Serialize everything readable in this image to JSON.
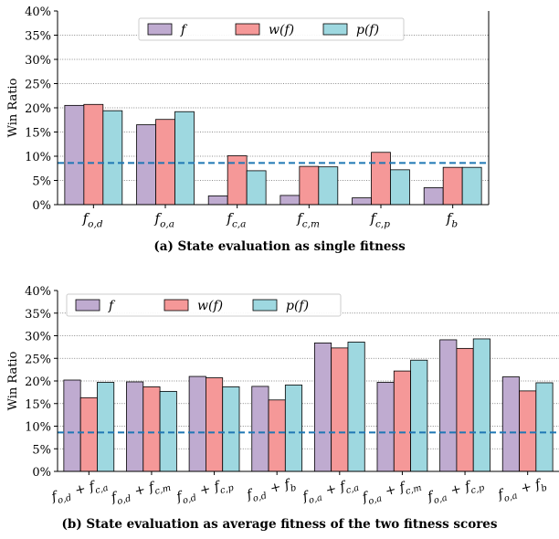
{
  "chart_data": [
    {
      "type": "bar",
      "caption": "(a) State evaluation as single fitness",
      "ylabel": "Win Ratio",
      "ylim": [
        0,
        40
      ],
      "yticks": [
        "0%",
        "5%",
        "10%",
        "15%",
        "20%",
        "25%",
        "30%",
        "35%",
        "40%"
      ],
      "categories": [
        "f_{o,d}",
        "f_{o,a}",
        "f_{c,a}",
        "f_{c,m}",
        "f_{c,p}",
        "f_b"
      ],
      "series": [
        {
          "name": "f",
          "color": "#bfabd0",
          "values": [
            20.5,
            16.5,
            1.8,
            1.9,
            1.4,
            3.5
          ]
        },
        {
          "name": "w(f)",
          "color": "#f59898",
          "values": [
            20.7,
            17.6,
            10.1,
            7.9,
            10.8,
            7.7
          ]
        },
        {
          "name": "p(f)",
          "color": "#9ed8e0",
          "values": [
            19.4,
            19.2,
            7.0,
            7.8,
            7.2,
            7.7
          ]
        }
      ],
      "baseline": 8.6,
      "legend": "top-left",
      "grid": "horizontal dotted"
    },
    {
      "type": "bar",
      "caption": "(b) State evaluation as average fitness of the two fitness scores",
      "ylabel": "Win Ratio",
      "ylim": [
        0,
        40
      ],
      "yticks": [
        "0%",
        "5%",
        "10%",
        "15%",
        "20%",
        "25%",
        "30%",
        "35%",
        "40%"
      ],
      "categories": [
        "f_{o,d} + f_{c,a}",
        "f_{o,d} + f_{c,m}",
        "f_{o,d} + f_{c,p}",
        "f_{o,d} + f_b",
        "f_{o,a} + f_{c,a}",
        "f_{o,a} + f_{c,m}",
        "f_{o,a} + f_{c,p}",
        "f_{o,a} + f_b"
      ],
      "series": [
        {
          "name": "f",
          "color": "#bfabd0",
          "values": [
            20.2,
            19.8,
            21.0,
            18.8,
            28.4,
            19.7,
            29.1,
            20.9
          ]
        },
        {
          "name": "w(f)",
          "color": "#f59898",
          "values": [
            16.3,
            18.7,
            20.7,
            15.8,
            27.3,
            22.2,
            27.2,
            17.8
          ]
        },
        {
          "name": "p(f)",
          "color": "#9ed8e0",
          "values": [
            19.7,
            17.7,
            18.7,
            19.1,
            28.6,
            24.6,
            29.3,
            19.6
          ]
        }
      ],
      "baseline": 8.6,
      "legend": "top-left",
      "grid": "horizontal dotted"
    }
  ]
}
